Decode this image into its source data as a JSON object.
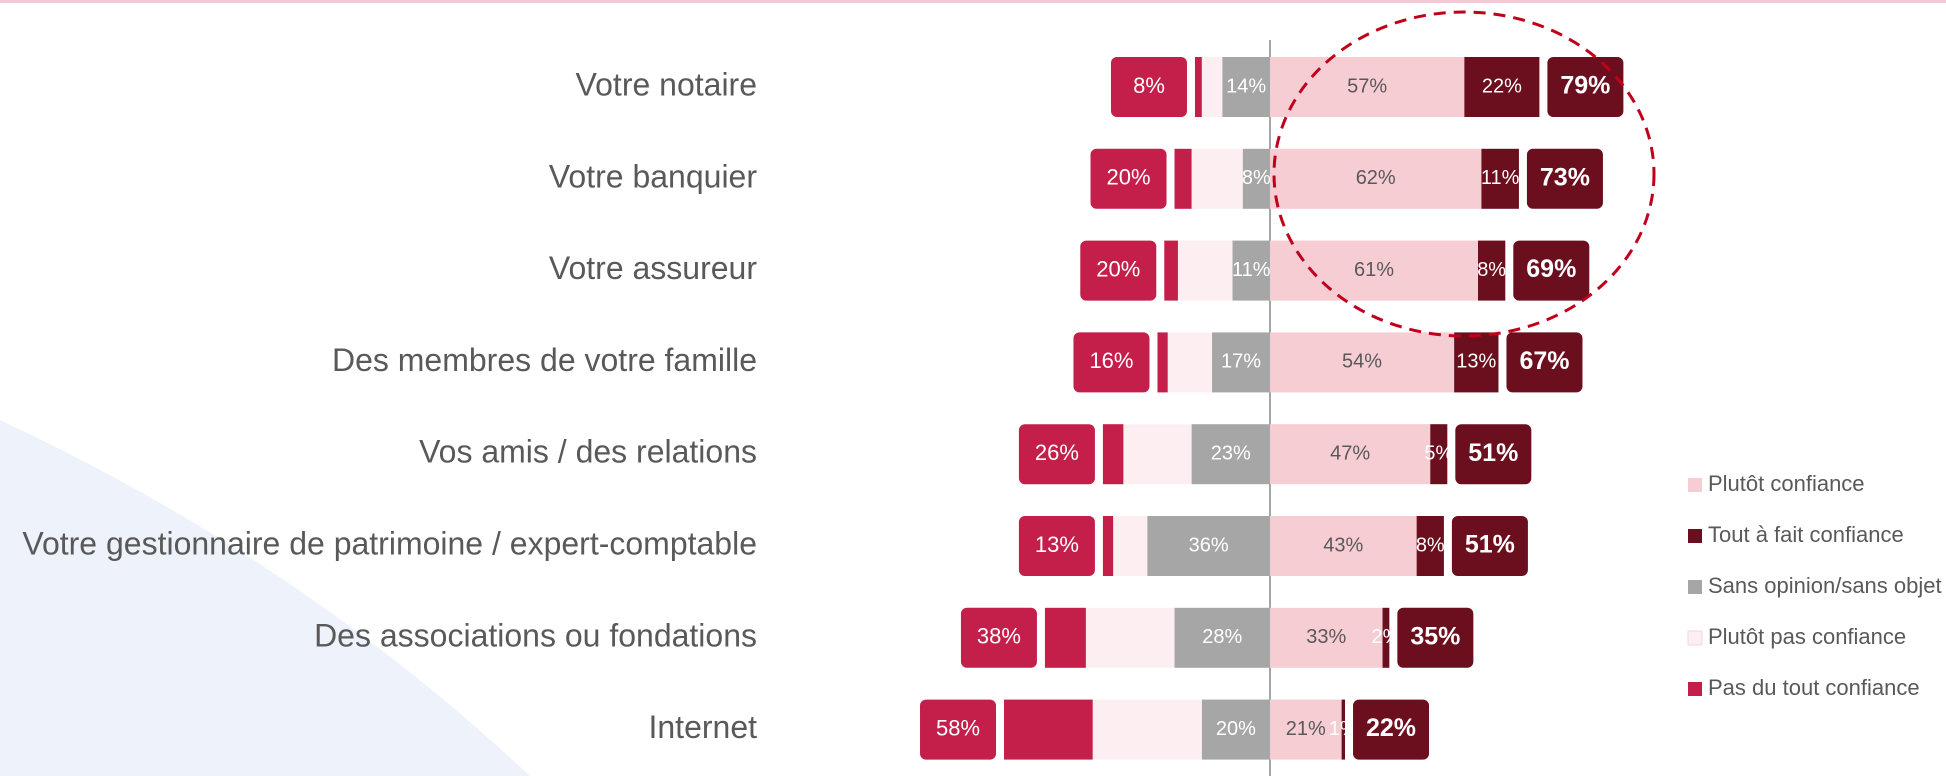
{
  "chart_data": {
    "type": "diverging_bar",
    "categories": [
      "Votre notaire",
      "Votre banquier",
      "Votre assureur",
      "Des membres de votre famille",
      "Vos amis / des relations",
      "Votre gestionnaire de patrimoine / expert-comptable",
      "Des associations ou fondations",
      "Internet"
    ],
    "series": [
      {
        "name": "Plutôt confiance",
        "color": "#f7cdd4",
        "side": "right",
        "values": [
          57,
          62,
          61,
          54,
          47,
          43,
          33,
          21
        ],
        "value_labels": [
          "57%",
          "62%",
          "61%",
          "54%",
          "47%",
          "43%",
          "33%",
          "21%"
        ]
      },
      {
        "name": "Tout à fait confiance",
        "color": "#6b0f1e",
        "side": "right",
        "values": [
          22,
          11,
          8,
          13,
          5,
          8,
          2,
          1
        ],
        "value_labels": [
          "22%",
          "11%",
          "8%",
          "13%",
          "5%",
          "8%",
          "2%",
          "1%"
        ]
      },
      {
        "name": "Sans opinion/sans objet",
        "color": "#a6a6a6",
        "side": "left",
        "values": [
          14,
          8,
          11,
          17,
          23,
          36,
          28,
          20
        ],
        "value_labels": [
          "14%",
          "8%",
          "11%",
          "17%",
          "23%",
          "36%",
          "28%",
          "20%"
        ]
      },
      {
        "name": "Plutôt pas confiance",
        "color": "#fdeef1",
        "side": "left",
        "values": [
          6,
          15,
          16,
          13,
          20,
          10,
          26,
          32
        ]
      },
      {
        "name": "Pas du tout confiance",
        "color": "#c41e4a",
        "side": "left",
        "values": [
          2,
          5,
          4,
          3,
          6,
          3,
          12,
          26
        ]
      }
    ],
    "positive_totals": {
      "color": "#6b0f1e",
      "values": [
        79,
        73,
        69,
        67,
        51,
        51,
        35,
        22
      ],
      "value_labels": [
        "79%",
        "73%",
        "69%",
        "67%",
        "51%",
        "51%",
        "35%",
        "22%"
      ]
    },
    "negative_totals": {
      "color": "#c41e4a",
      "values": [
        8,
        20,
        20,
        16,
        26,
        13,
        38,
        58
      ],
      "value_labels": [
        "8%",
        "20%",
        "20%",
        "16%",
        "26%",
        "13%",
        "38%",
        "58%"
      ]
    }
  }
}
